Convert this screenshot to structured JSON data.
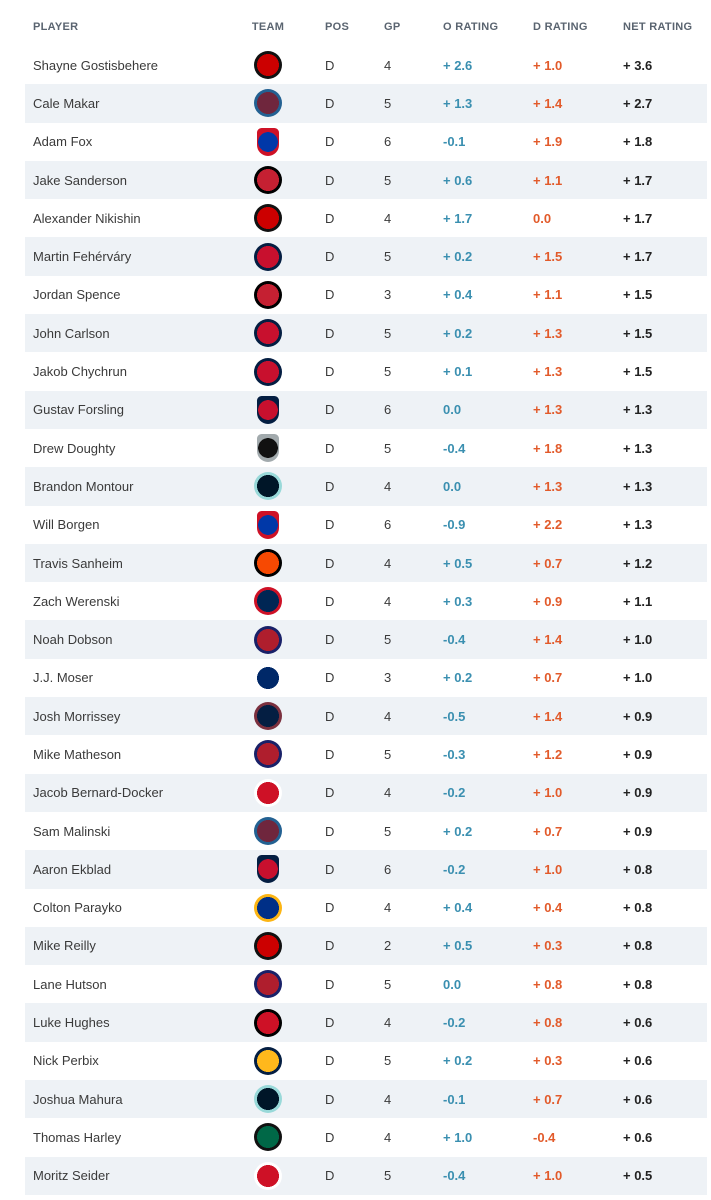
{
  "columns": {
    "player": "PLAYER",
    "team": "TEAM",
    "pos": "POS",
    "gp": "GP",
    "o_rating": "O RATING",
    "d_rating": "D RATING",
    "net_rating": "NET RATING"
  },
  "team_logos": {
    "CAR": {
      "icon": "hurricanes-logo-icon",
      "color": "#cc0000",
      "secondary": "#111111"
    },
    "COL": {
      "icon": "avalanche-logo-icon",
      "color": "#6f263d",
      "secondary": "#236192"
    },
    "NYR": {
      "icon": "rangers-logo-icon",
      "color": "#0038a8",
      "secondary": "#ce1126"
    },
    "OTT": {
      "icon": "senators-logo-icon",
      "color": "#c52032",
      "secondary": "#000000"
    },
    "WSH": {
      "icon": "capitals-logo-icon",
      "color": "#c8102e",
      "secondary": "#041e42"
    },
    "FLA": {
      "icon": "panthers-logo-icon",
      "color": "#c8102e",
      "secondary": "#041e42"
    },
    "LAK": {
      "icon": "kings-logo-icon",
      "color": "#111111",
      "secondary": "#a2aaad"
    },
    "SEA": {
      "icon": "kraken-logo-icon",
      "color": "#001628",
      "secondary": "#99d9d9"
    },
    "PHI": {
      "icon": "flyers-logo-icon",
      "color": "#f74902",
      "secondary": "#000000"
    },
    "CBJ": {
      "icon": "blue-jackets-logo-icon",
      "color": "#002654",
      "secondary": "#ce1126"
    },
    "MTL": {
      "icon": "canadiens-logo-icon",
      "color": "#af1e2d",
      "secondary": "#192168"
    },
    "TBL": {
      "icon": "lightning-logo-icon",
      "color": "#002868",
      "secondary": "#ffffff"
    },
    "WPG": {
      "icon": "jets-logo-icon",
      "color": "#041e42",
      "secondary": "#7b303e"
    },
    "DET": {
      "icon": "red-wings-logo-icon",
      "color": "#ce1126",
      "secondary": "#ffffff"
    },
    "STL": {
      "icon": "blues-logo-icon",
      "color": "#002f87",
      "secondary": "#fcb514"
    },
    "NJD": {
      "icon": "devils-logo-icon",
      "color": "#ce1126",
      "secondary": "#000000"
    },
    "NSH": {
      "icon": "predators-logo-icon",
      "color": "#ffb81c",
      "secondary": "#041e42"
    },
    "DAL": {
      "icon": "stars-logo-icon",
      "color": "#006847",
      "secondary": "#111111"
    }
  },
  "rows": [
    {
      "player": "Shayne Gostisbehere",
      "team": "CAR",
      "pos": "D",
      "gp": "4",
      "o": "+ 2.6",
      "d": "+ 1.0",
      "net": "+ 3.6"
    },
    {
      "player": "Cale Makar",
      "team": "COL",
      "pos": "D",
      "gp": "5",
      "o": "+ 1.3",
      "d": "+ 1.4",
      "net": "+ 2.7"
    },
    {
      "player": "Adam Fox",
      "team": "NYR",
      "pos": "D",
      "gp": "6",
      "o": "-0.1",
      "d": "+ 1.9",
      "net": "+ 1.8"
    },
    {
      "player": "Jake Sanderson",
      "team": "OTT",
      "pos": "D",
      "gp": "5",
      "o": "+ 0.6",
      "d": "+ 1.1",
      "net": "+ 1.7"
    },
    {
      "player": "Alexander Nikishin",
      "team": "CAR",
      "pos": "D",
      "gp": "4",
      "o": "+ 1.7",
      "d": "0.0",
      "net": "+ 1.7"
    },
    {
      "player": "Martin Fehérváry",
      "team": "WSH",
      "pos": "D",
      "gp": "5",
      "o": "+ 0.2",
      "d": "+ 1.5",
      "net": "+ 1.7"
    },
    {
      "player": "Jordan Spence",
      "team": "OTT",
      "pos": "D",
      "gp": "3",
      "o": "+ 0.4",
      "d": "+ 1.1",
      "net": "+ 1.5"
    },
    {
      "player": "John Carlson",
      "team": "WSH",
      "pos": "D",
      "gp": "5",
      "o": "+ 0.2",
      "d": "+ 1.3",
      "net": "+ 1.5"
    },
    {
      "player": "Jakob Chychrun",
      "team": "WSH",
      "pos": "D",
      "gp": "5",
      "o": "+ 0.1",
      "d": "+ 1.3",
      "net": "+ 1.5"
    },
    {
      "player": "Gustav Forsling",
      "team": "FLA",
      "pos": "D",
      "gp": "6",
      "o": "0.0",
      "d": "+ 1.3",
      "net": "+ 1.3"
    },
    {
      "player": "Drew Doughty",
      "team": "LAK",
      "pos": "D",
      "gp": "5",
      "o": "-0.4",
      "d": "+ 1.8",
      "net": "+ 1.3"
    },
    {
      "player": "Brandon Montour",
      "team": "SEA",
      "pos": "D",
      "gp": "4",
      "o": "0.0",
      "d": "+ 1.3",
      "net": "+ 1.3"
    },
    {
      "player": "Will Borgen",
      "team": "NYR",
      "pos": "D",
      "gp": "6",
      "o": "-0.9",
      "d": "+ 2.2",
      "net": "+ 1.3"
    },
    {
      "player": "Travis Sanheim",
      "team": "PHI",
      "pos": "D",
      "gp": "4",
      "o": "+ 0.5",
      "d": "+ 0.7",
      "net": "+ 1.2"
    },
    {
      "player": "Zach Werenski",
      "team": "CBJ",
      "pos": "D",
      "gp": "4",
      "o": "+ 0.3",
      "d": "+ 0.9",
      "net": "+ 1.1"
    },
    {
      "player": "Noah Dobson",
      "team": "MTL",
      "pos": "D",
      "gp": "5",
      "o": "-0.4",
      "d": "+ 1.4",
      "net": "+ 1.0"
    },
    {
      "player": "J.J. Moser",
      "team": "TBL",
      "pos": "D",
      "gp": "3",
      "o": "+ 0.2",
      "d": "+ 0.7",
      "net": "+ 1.0"
    },
    {
      "player": "Josh Morrissey",
      "team": "WPG",
      "pos": "D",
      "gp": "4",
      "o": "-0.5",
      "d": "+ 1.4",
      "net": "+ 0.9"
    },
    {
      "player": "Mike Matheson",
      "team": "MTL",
      "pos": "D",
      "gp": "5",
      "o": "-0.3",
      "d": "+ 1.2",
      "net": "+ 0.9"
    },
    {
      "player": "Jacob Bernard-Docker",
      "team": "DET",
      "pos": "D",
      "gp": "4",
      "o": "-0.2",
      "d": "+ 1.0",
      "net": "+ 0.9"
    },
    {
      "player": "Sam Malinski",
      "team": "COL",
      "pos": "D",
      "gp": "5",
      "o": "+ 0.2",
      "d": "+ 0.7",
      "net": "+ 0.9"
    },
    {
      "player": "Aaron Ekblad",
      "team": "FLA",
      "pos": "D",
      "gp": "6",
      "o": "-0.2",
      "d": "+ 1.0",
      "net": "+ 0.8"
    },
    {
      "player": "Colton Parayko",
      "team": "STL",
      "pos": "D",
      "gp": "4",
      "o": "+ 0.4",
      "d": "+ 0.4",
      "net": "+ 0.8"
    },
    {
      "player": "Mike Reilly",
      "team": "CAR",
      "pos": "D",
      "gp": "2",
      "o": "+ 0.5",
      "d": "+ 0.3",
      "net": "+ 0.8"
    },
    {
      "player": "Lane Hutson",
      "team": "MTL",
      "pos": "D",
      "gp": "5",
      "o": "0.0",
      "d": "+ 0.8",
      "net": "+ 0.8"
    },
    {
      "player": "Luke Hughes",
      "team": "NJD",
      "pos": "D",
      "gp": "4",
      "o": "-0.2",
      "d": "+ 0.8",
      "net": "+ 0.6"
    },
    {
      "player": "Nick Perbix",
      "team": "NSH",
      "pos": "D",
      "gp": "5",
      "o": "+ 0.2",
      "d": "+ 0.3",
      "net": "+ 0.6"
    },
    {
      "player": "Joshua Mahura",
      "team": "SEA",
      "pos": "D",
      "gp": "4",
      "o": "-0.1",
      "d": "+ 0.7",
      "net": "+ 0.6"
    },
    {
      "player": "Thomas Harley",
      "team": "DAL",
      "pos": "D",
      "gp": "4",
      "o": "+ 1.0",
      "d": "-0.4",
      "net": "+ 0.6"
    },
    {
      "player": "Moritz Seider",
      "team": "DET",
      "pos": "D",
      "gp": "5",
      "o": "-0.4",
      "d": "+ 1.0",
      "net": "+ 0.5"
    }
  ]
}
